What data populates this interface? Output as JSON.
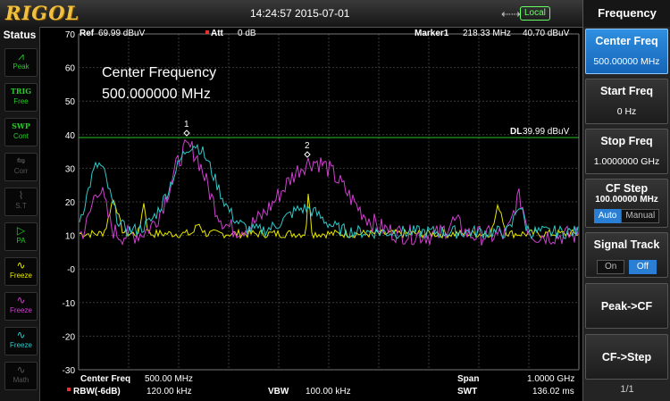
{
  "topbar": {
    "logo": "RIGOL",
    "datetime": "14:24:57 2015-07-01",
    "usb_icon": "usb-icon",
    "local": "Local"
  },
  "status": {
    "title": "Status",
    "items": [
      {
        "label": "Peak",
        "color": "#28c828",
        "icon": "peak-wave-icon"
      },
      {
        "label": "Free",
        "top": "TRIG",
        "color": "#28c828",
        "icon": "trig-icon"
      },
      {
        "label": "Cont",
        "top": "SWP",
        "color": "#28c828",
        "icon": "sweep-icon"
      },
      {
        "label": "Corr",
        "color": "#555555",
        "icon": "corr-icon"
      },
      {
        "label": "S.T",
        "color": "#555555",
        "icon": "st-icon"
      },
      {
        "label": "PA",
        "color": "#28c828",
        "icon": "preamp-icon"
      },
      {
        "label": "Freeze",
        "color": "#e8e800",
        "icon": "trace1-icon"
      },
      {
        "label": "Freeze",
        "color": "#d040d0",
        "icon": "trace2-icon"
      },
      {
        "label": "Freeze",
        "color": "#30c8c8",
        "icon": "trace3-icon"
      },
      {
        "label": "Math",
        "color": "#555555",
        "icon": "math-icon"
      }
    ]
  },
  "plot": {
    "ref_label": "Ref",
    "ref_value": "69.99 dBuV",
    "att_label": "Att",
    "att_value": "0 dB",
    "marker_label": "Marker1",
    "marker_freq": "218.33 MHz",
    "marker_level": "40.70 dBuV",
    "cf_overlay_title": "Center Frequency",
    "cf_overlay_value": "500.000000 MHz",
    "dl_label": "DL",
    "dl_value": "39.99 dBuV",
    "y_ticks": [
      "70",
      "60",
      "50",
      "40",
      "30",
      "20",
      "10",
      "-0",
      "-10",
      "-20",
      "-30"
    ],
    "marker_ids": [
      "1",
      "2"
    ],
    "bottom": {
      "center_freq_label": "Center Freq",
      "center_freq_value": "500.00 MHz",
      "rbw_label": "RBW(-6dB)",
      "rbw_value": "120.00 kHz",
      "vbw_label": "VBW",
      "vbw_value": "100.00 kHz",
      "span_label": "Span",
      "span_value": "1.0000 GHz",
      "swt_label": "SWT",
      "swt_value": "136.02 ms"
    },
    "colors": {
      "grid": "#3a3a3a",
      "dl": "#2ac42a",
      "trace1": "#e8e800",
      "trace2": "#d040d0",
      "trace3": "#30c8c8"
    }
  },
  "menu": {
    "title": "Frequency",
    "center_freq_label": "Center Freq",
    "center_freq_value": "500.00000 MHz",
    "start_freq_label": "Start Freq",
    "start_freq_value": "0 Hz",
    "stop_freq_label": "Stop Freq",
    "stop_freq_value": "1.0000000 GHz",
    "cf_step_label": "CF Step",
    "cf_step_value": "100.00000 MHz",
    "cf_step_auto": "Auto",
    "cf_step_manual": "Manual",
    "signal_track_label": "Signal Track",
    "signal_track_on": "On",
    "signal_track_off": "Off",
    "peak_cf_label": "Peak->CF",
    "cf_step_btn_label": "CF->Step",
    "page": "1/1"
  }
}
